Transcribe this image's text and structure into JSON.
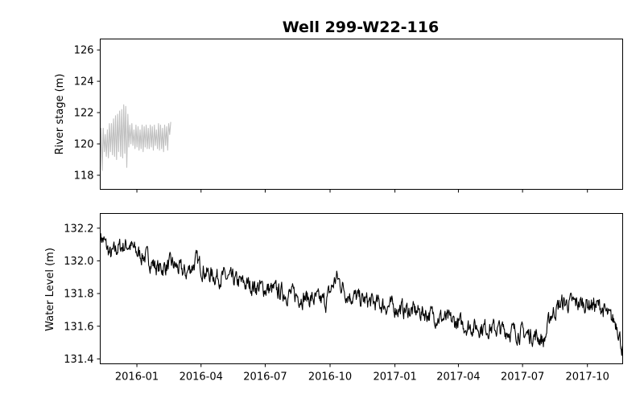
{
  "title": "Well 299-W22-116",
  "chart_data": [
    {
      "type": "line",
      "ylabel": "River stage (m)",
      "color": "#c0c0c0",
      "xlim": [
        "2015-11-10",
        "2017-11-20"
      ],
      "ylim": [
        117.1,
        126.7
      ],
      "yticks": [
        "118",
        "120",
        "122",
        "124",
        "126"
      ],
      "x_range": [
        "2015-11-10",
        "2016-02-18"
      ],
      "series": [
        {
          "values": [
            118.4,
            121.0,
            118.3,
            121.0,
            119.5,
            120.6,
            119.2,
            120.9,
            119.1,
            121.3,
            119.5,
            121.3,
            119.3,
            121.6,
            119.2,
            121.8,
            119.0,
            121.9,
            119.5,
            122.1,
            119.2,
            122.2,
            119.1,
            122.5,
            119.4,
            122.4,
            118.5,
            121.9,
            119.8,
            121.2,
            120.0,
            121.3,
            119.9,
            120.9,
            119.7,
            121.2,
            119.8,
            121.1,
            119.6,
            120.9,
            119.7,
            121.2,
            119.5,
            121.1,
            119.8,
            121.2,
            119.7,
            121.0,
            119.7,
            121.2,
            119.8,
            121.1,
            119.6,
            121.2,
            119.9,
            120.9,
            119.7,
            121.3,
            119.6,
            121.2,
            119.7,
            121.0,
            119.5,
            121.2,
            119.9,
            121.1,
            119.6,
            121.3,
            120.6,
            121.4
          ]
        }
      ]
    },
    {
      "type": "line",
      "ylabel": "Water Level (m)",
      "color": "#000000",
      "xlim": [
        "2015-11-10",
        "2017-11-20"
      ],
      "ylim": [
        131.37,
        132.29
      ],
      "yticks": [
        "131.4",
        "131.6",
        "131.8",
        "132.0",
        "132.2"
      ],
      "xticks": [
        "2016-01",
        "2016-04",
        "2016-07",
        "2016-10",
        "2017-01",
        "2017-04",
        "2017-07",
        "2017-10"
      ],
      "x_range": [
        "2015-11-10",
        "2017-11-20"
      ],
      "noise": 0.055,
      "series": [
        {
          "keyframes": [
            [
              "2015-11-10",
              132.16
            ],
            [
              "2015-11-15",
              132.12
            ],
            [
              "2015-11-25",
              132.03
            ],
            [
              "2015-12-05",
              132.08
            ],
            [
              "2015-12-20",
              132.1
            ],
            [
              "2016-01-01",
              132.05
            ],
            [
              "2016-01-15",
              132.02
            ],
            [
              "2016-02-01",
              131.95
            ],
            [
              "2016-02-20",
              131.98
            ],
            [
              "2016-03-10",
              131.92
            ],
            [
              "2016-03-25",
              132.0
            ],
            [
              "2016-04-10",
              131.92
            ],
            [
              "2016-05-01",
              131.9
            ],
            [
              "2016-06-01",
              131.86
            ],
            [
              "2016-07-01",
              131.83
            ],
            [
              "2016-08-01",
              131.8
            ],
            [
              "2016-09-01",
              131.77
            ],
            [
              "2016-09-25",
              131.75
            ],
            [
              "2016-10-10",
              131.9
            ],
            [
              "2016-10-25",
              131.8
            ],
            [
              "2016-11-15",
              131.76
            ],
            [
              "2016-12-15",
              131.73
            ],
            [
              "2017-01-15",
              131.7
            ],
            [
              "2017-02-15",
              131.68
            ],
            [
              "2017-03-15",
              131.64
            ],
            [
              "2017-04-15",
              131.6
            ],
            [
              "2017-05-15",
              131.59
            ],
            [
              "2017-06-15",
              131.57
            ],
            [
              "2017-07-20",
              131.54
            ],
            [
              "2017-08-01",
              131.51
            ],
            [
              "2017-08-10",
              131.67
            ],
            [
              "2017-08-25",
              131.74
            ],
            [
              "2017-10-01",
              131.74
            ],
            [
              "2017-10-20",
              131.72
            ],
            [
              "2017-11-01",
              131.65
            ],
            [
              "2017-11-12",
              131.62
            ],
            [
              "2017-11-20",
              131.45
            ]
          ]
        }
      ]
    }
  ]
}
